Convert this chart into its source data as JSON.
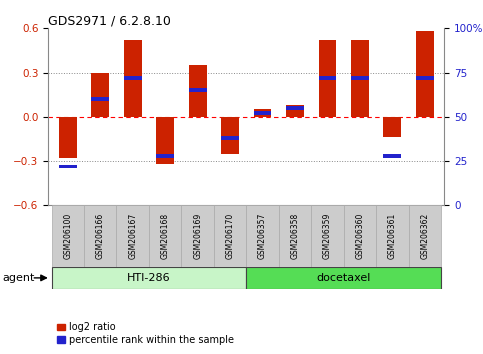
{
  "title": "GDS2971 / 6.2.8.10",
  "samples": [
    "GSM206100",
    "GSM206166",
    "GSM206167",
    "GSM206168",
    "GSM206169",
    "GSM206170",
    "GSM206357",
    "GSM206358",
    "GSM206359",
    "GSM206360",
    "GSM206361",
    "GSM206362"
  ],
  "log2_ratio": [
    -0.28,
    0.3,
    0.52,
    -0.32,
    0.35,
    -0.25,
    0.05,
    0.08,
    0.52,
    0.52,
    -0.14,
    0.58
  ],
  "percentile_rank": [
    22,
    60,
    72,
    28,
    65,
    38,
    52,
    55,
    72,
    72,
    28,
    72
  ],
  "ylim": [
    -0.6,
    0.6
  ],
  "yticks_left": [
    -0.6,
    -0.3,
    0.0,
    0.3,
    0.6
  ],
  "yticks_right": [
    0,
    25,
    50,
    75,
    100
  ],
  "hti286_color_light": "#c8f5c8",
  "hti286_color_dark": "#66ee66",
  "docetaxel_color": "#55dd55",
  "bar_color_red": "#cc2200",
  "bar_color_blue": "#2222cc",
  "sample_box_color": "#cccccc",
  "hti286_samples": 6,
  "docetaxel_samples": 6,
  "legend_red": "log2 ratio",
  "legend_blue": "percentile rank within the sample",
  "agent_label": "agent",
  "hti286_label": "HTI-286",
  "docetaxel_label": "docetaxel"
}
